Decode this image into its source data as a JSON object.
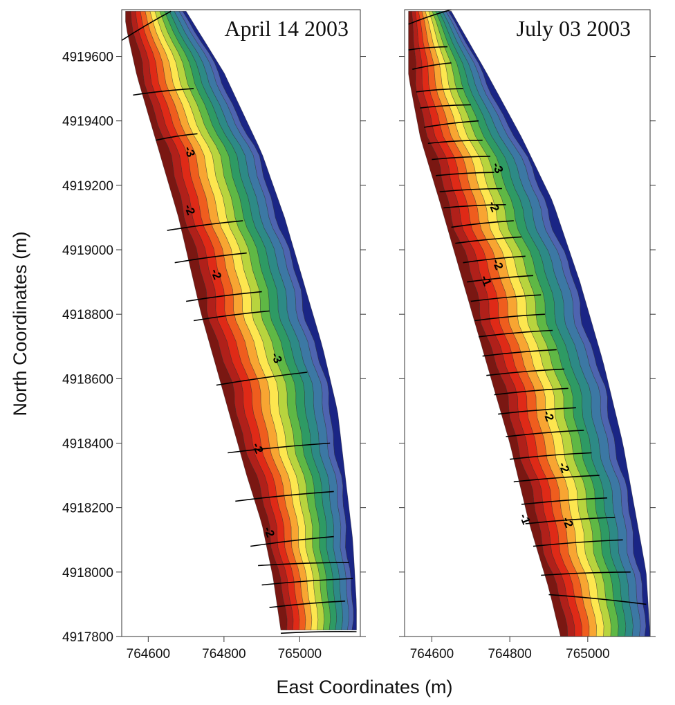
{
  "colors": {
    "ramp": [
      "#7a1712",
      "#b0201a",
      "#df2a17",
      "#ef5d1e",
      "#f8a532",
      "#fde64f",
      "#b8d43e",
      "#5fb845",
      "#2e9a64",
      "#2d8a86",
      "#3c78a4",
      "#4e64b0",
      "#1a2585"
    ],
    "profile_line": "#000000",
    "frame": "#333333"
  },
  "chart_data": [
    {
      "type": "contour",
      "title": "April 14 2003",
      "xlabel": "East Coordinates (m)",
      "ylabel": "North Coordinates (m)",
      "xlim": [
        764530,
        765160
      ],
      "ylim": [
        4917800,
        4919745
      ],
      "x_ticks": [
        764600,
        764800,
        765000
      ],
      "x_tick_labels": [
        "764600",
        "764800",
        "765000"
      ],
      "y_ticks": [
        4917800,
        4918000,
        4918200,
        4918400,
        4918600,
        4918800,
        4919000,
        4919200,
        4919400,
        4919600
      ],
      "y_tick_labels": [
        "4917800",
        "4918000",
        "4918200",
        "4918400",
        "4918600",
        "4918800",
        "4919000",
        "4919200",
        "4919400",
        "4919600"
      ],
      "surface": {
        "shore_line": [
          [
            764540,
            4919700
          ],
          [
            764570,
            4919540
          ],
          [
            764630,
            4919300
          ],
          [
            764680,
            4919100
          ],
          [
            764740,
            4918800
          ],
          [
            764800,
            4918550
          ],
          [
            764860,
            4918300
          ],
          [
            764900,
            4918150
          ],
          [
            764930,
            4917980
          ],
          [
            764950,
            4917820
          ]
        ],
        "sea_line": [
          [
            764700,
            4919740
          ],
          [
            764800,
            4919550
          ],
          [
            764900,
            4919300
          ],
          [
            764960,
            4919100
          ],
          [
            765010,
            4918900
          ],
          [
            765060,
            4918700
          ],
          [
            765100,
            4918500
          ],
          [
            765120,
            4918300
          ],
          [
            765140,
            4918100
          ],
          [
            765150,
            4917900
          ]
        ],
        "band_fractions": [
          0.0,
          0.08,
          0.16,
          0.24,
          0.32,
          0.4,
          0.48,
          0.56,
          0.64,
          0.72,
          0.8,
          0.88,
          0.94,
          1.0
        ],
        "bar_crest_fraction": 0.32
      },
      "contour_labels": [
        {
          "text": "-3",
          "x": 764700,
          "y": 4919300
        },
        {
          "text": "-2",
          "x": 764700,
          "y": 4919120
        },
        {
          "text": "-2",
          "x": 764770,
          "y": 4918920
        },
        {
          "text": "-3",
          "x": 764930,
          "y": 4918660
        },
        {
          "text": "-2",
          "x": 764880,
          "y": 4918380
        },
        {
          "text": "-2",
          "x": 764910,
          "y": 4918120
        }
      ],
      "profiles": [
        {
          "x1": 764530,
          "y1": 4919650,
          "x2": 764660,
          "y2": 4919740
        },
        {
          "x1": 764560,
          "y1": 4919480,
          "x2": 764720,
          "y2": 4919500
        },
        {
          "x1": 764620,
          "y1": 4919340,
          "x2": 764730,
          "y2": 4919360
        },
        {
          "x1": 764650,
          "y1": 4919060,
          "x2": 764850,
          "y2": 4919090
        },
        {
          "x1": 764670,
          "y1": 4918960,
          "x2": 764860,
          "y2": 4918990
        },
        {
          "x1": 764700,
          "y1": 4918840,
          "x2": 764900,
          "y2": 4918870
        },
        {
          "x1": 764720,
          "y1": 4918780,
          "x2": 764920,
          "y2": 4918810
        },
        {
          "x1": 764780,
          "y1": 4918580,
          "x2": 765020,
          "y2": 4918620
        },
        {
          "x1": 764810,
          "y1": 4918370,
          "x2": 765080,
          "y2": 4918400
        },
        {
          "x1": 764830,
          "y1": 4918220,
          "x2": 765090,
          "y2": 4918250
        },
        {
          "x1": 764870,
          "y1": 4918080,
          "x2": 765090,
          "y2": 4918110
        },
        {
          "x1": 764890,
          "y1": 4918020,
          "x2": 765130,
          "y2": 4918030
        },
        {
          "x1": 764900,
          "y1": 4917960,
          "x2": 765140,
          "y2": 4917980
        },
        {
          "x1": 764920,
          "y1": 4917890,
          "x2": 765120,
          "y2": 4917910
        },
        {
          "x1": 764950,
          "y1": 4917810,
          "x2": 765150,
          "y2": 4917815
        }
      ]
    },
    {
      "type": "contour",
      "title": "July 03 2003",
      "xlabel": "East Coordinates (m)",
      "ylabel": "North Coordinates (m)",
      "xlim": [
        764530,
        765160
      ],
      "ylim": [
        4917800,
        4919745
      ],
      "x_ticks": [
        764600,
        764800,
        765000
      ],
      "x_tick_labels": [
        "764600",
        "764800",
        "765000"
      ],
      "y_ticks": [
        4917800,
        4918000,
        4918200,
        4918400,
        4918600,
        4918800,
        4919000,
        4919200,
        4919400,
        4919600
      ],
      "y_tick_labels": [
        "4917800",
        "4918000",
        "4918200",
        "4918400",
        "4918600",
        "4918800",
        "4919000",
        "4919200",
        "4919400",
        "4919600"
      ],
      "surface": {
        "shore_line": [
          [
            764540,
            4919720
          ],
          [
            764540,
            4919540
          ],
          [
            764570,
            4919350
          ],
          [
            764620,
            4919150
          ],
          [
            764680,
            4918900
          ],
          [
            764740,
            4918650
          ],
          [
            764800,
            4918400
          ],
          [
            764850,
            4918150
          ],
          [
            764900,
            4917950
          ],
          [
            764930,
            4917800
          ]
        ],
        "sea_line": [
          [
            764650,
            4919740
          ],
          [
            764740,
            4919550
          ],
          [
            764830,
            4919350
          ],
          [
            764910,
            4919150
          ],
          [
            764980,
            4918900
          ],
          [
            765040,
            4918650
          ],
          [
            765090,
            4918400
          ],
          [
            765120,
            4918200
          ],
          [
            765150,
            4918000
          ],
          [
            765160,
            4917800
          ]
        ],
        "band_fractions": [
          0.0,
          0.08,
          0.16,
          0.24,
          0.32,
          0.4,
          0.48,
          0.56,
          0.64,
          0.72,
          0.8,
          0.88,
          0.94,
          1.0
        ],
        "bar_crest_fraction": 0.3
      },
      "contour_labels": [
        {
          "text": "-3",
          "x": 764760,
          "y": 4919250
        },
        {
          "text": "-2",
          "x": 764750,
          "y": 4919130
        },
        {
          "text": "-2",
          "x": 764760,
          "y": 4918950
        },
        {
          "text": "-1",
          "x": 764730,
          "y": 4918900
        },
        {
          "text": "-2",
          "x": 764890,
          "y": 4918480
        },
        {
          "text": "-2",
          "x": 764930,
          "y": 4918320
        },
        {
          "text": "-1",
          "x": 764830,
          "y": 4918160
        },
        {
          "text": "-2",
          "x": 764940,
          "y": 4918150
        }
      ],
      "profiles": [
        {
          "x1": 764540,
          "y1": 4919700,
          "x2": 764650,
          "y2": 4919745
        },
        {
          "x1": 764540,
          "y1": 4919620,
          "x2": 764640,
          "y2": 4919630
        },
        {
          "x1": 764550,
          "y1": 4919560,
          "x2": 764650,
          "y2": 4919580
        },
        {
          "x1": 764560,
          "y1": 4919490,
          "x2": 764680,
          "y2": 4919500
        },
        {
          "x1": 764570,
          "y1": 4919440,
          "x2": 764700,
          "y2": 4919450
        },
        {
          "x1": 764580,
          "y1": 4919380,
          "x2": 764720,
          "y2": 4919400
        },
        {
          "x1": 764590,
          "y1": 4919330,
          "x2": 764730,
          "y2": 4919340
        },
        {
          "x1": 764600,
          "y1": 4919280,
          "x2": 764750,
          "y2": 4919290
        },
        {
          "x1": 764610,
          "y1": 4919230,
          "x2": 764760,
          "y2": 4919240
        },
        {
          "x1": 764620,
          "y1": 4919180,
          "x2": 764780,
          "y2": 4919190
        },
        {
          "x1": 764630,
          "y1": 4919130,
          "x2": 764790,
          "y2": 4919140
        },
        {
          "x1": 764650,
          "y1": 4919070,
          "x2": 764810,
          "y2": 4919090
        },
        {
          "x1": 764660,
          "y1": 4919020,
          "x2": 764830,
          "y2": 4919040
        },
        {
          "x1": 764680,
          "y1": 4918960,
          "x2": 764840,
          "y2": 4918980
        },
        {
          "x1": 764690,
          "y1": 4918900,
          "x2": 764860,
          "y2": 4918920
        },
        {
          "x1": 764700,
          "y1": 4918840,
          "x2": 764880,
          "y2": 4918860
        },
        {
          "x1": 764710,
          "y1": 4918780,
          "x2": 764890,
          "y2": 4918800
        },
        {
          "x1": 764720,
          "y1": 4918730,
          "x2": 764910,
          "y2": 4918750
        },
        {
          "x1": 764730,
          "y1": 4918670,
          "x2": 764920,
          "y2": 4918690
        },
        {
          "x1": 764740,
          "y1": 4918610,
          "x2": 764940,
          "y2": 4918630
        },
        {
          "x1": 764760,
          "y1": 4918550,
          "x2": 764950,
          "y2": 4918570
        },
        {
          "x1": 764770,
          "y1": 4918490,
          "x2": 764970,
          "y2": 4918510
        },
        {
          "x1": 764790,
          "y1": 4918420,
          "x2": 764990,
          "y2": 4918440
        },
        {
          "x1": 764800,
          "y1": 4918350,
          "x2": 765010,
          "y2": 4918370
        },
        {
          "x1": 764810,
          "y1": 4918280,
          "x2": 765030,
          "y2": 4918300
        },
        {
          "x1": 764830,
          "y1": 4918210,
          "x2": 765050,
          "y2": 4918230
        },
        {
          "x1": 764840,
          "y1": 4918150,
          "x2": 765070,
          "y2": 4918170
        },
        {
          "x1": 764860,
          "y1": 4918080,
          "x2": 765090,
          "y2": 4918100
        },
        {
          "x1": 764880,
          "y1": 4917990,
          "x2": 765110,
          "y2": 4918000
        },
        {
          "x1": 764900,
          "y1": 4917930,
          "x2": 765150,
          "y2": 4917900
        }
      ]
    }
  ]
}
